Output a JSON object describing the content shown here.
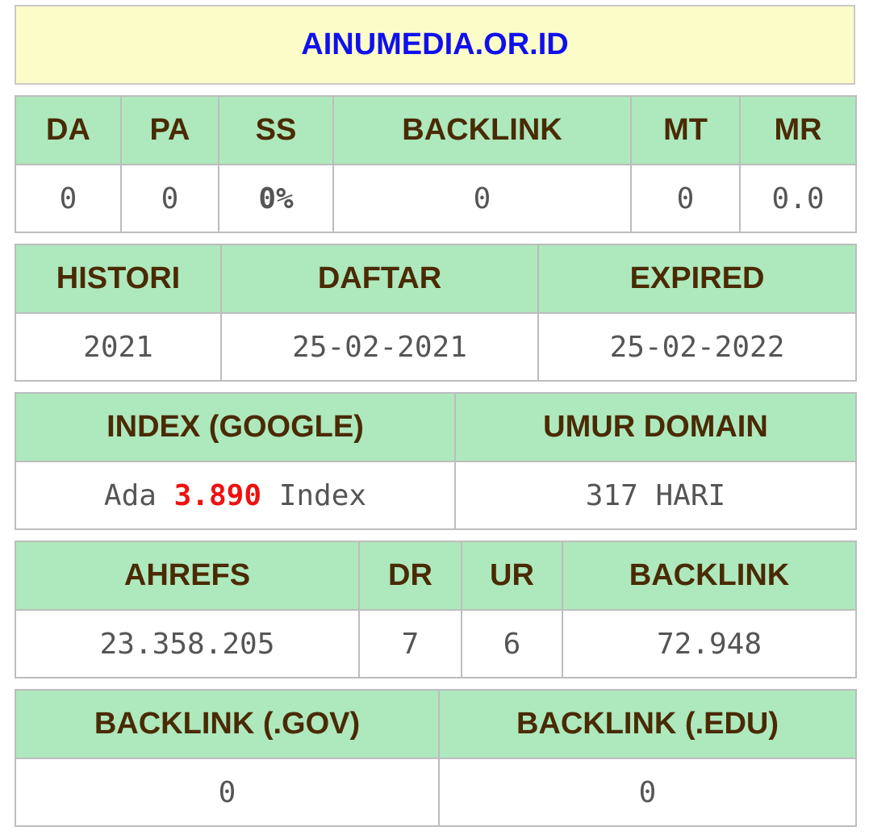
{
  "domain": "AINUMEDIA.OR.ID",
  "metrics": {
    "headers": [
      "DA",
      "PA",
      "SS",
      "BACKLINK",
      "MT",
      "MR"
    ],
    "values": [
      "0",
      "0",
      "0%",
      "0",
      "0",
      "0.0"
    ]
  },
  "history": {
    "headers": [
      "HISTORI",
      "DAFTAR",
      "EXPIRED"
    ],
    "values": [
      "2021",
      "25-02-2021",
      "25-02-2022"
    ]
  },
  "index": {
    "headers": [
      "INDEX (GOOGLE)",
      "UMUR DOMAIN"
    ],
    "prefix": "Ada",
    "count": "3.890",
    "suffix": "Index",
    "age": "317 HARI"
  },
  "ahrefs": {
    "headers": [
      "AHREFS",
      "DR",
      "UR",
      "BACKLINK"
    ],
    "values": [
      "23.358.205",
      "7",
      "6",
      "72.948"
    ]
  },
  "special_backlinks": {
    "headers": [
      "BACKLINK (.GOV)",
      "BACKLINK (.EDU)"
    ],
    "values": [
      "0",
      "0"
    ]
  },
  "colors": {
    "domain_title": "#1010ee",
    "header_bg": "#aee8bd",
    "header_text": "#4a2a04",
    "ss_value": "#6ccf12",
    "index_count": "#ee1111"
  }
}
